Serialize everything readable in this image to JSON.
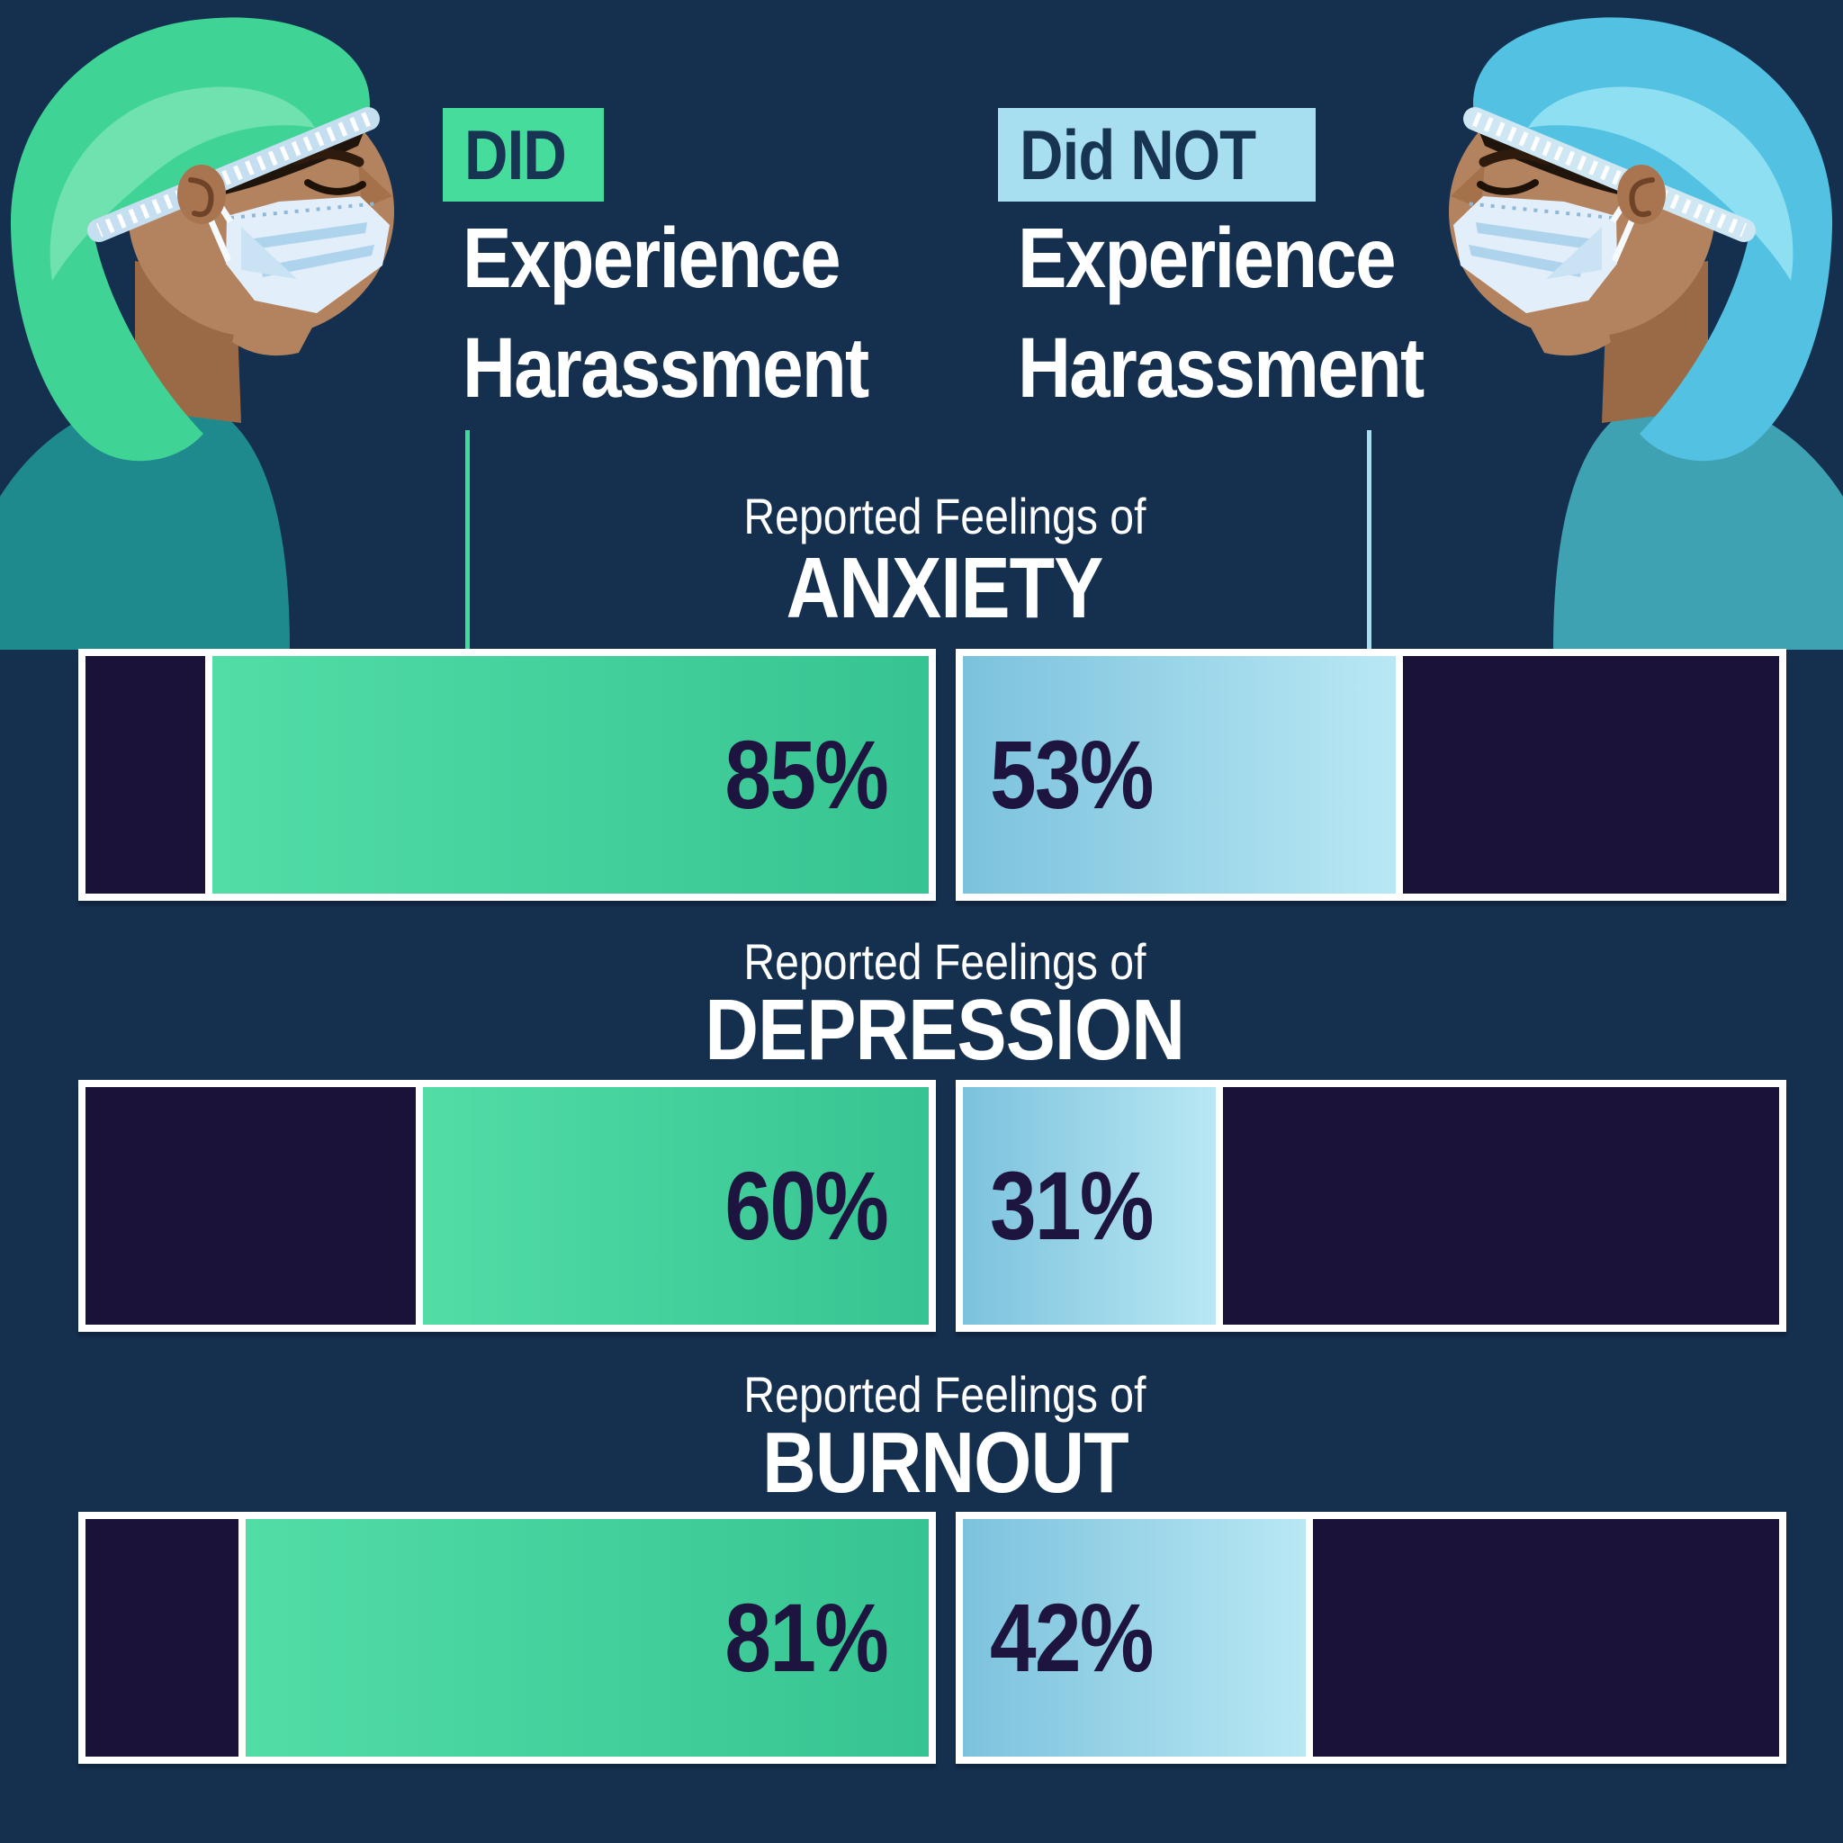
{
  "header": {
    "did": {
      "badge": "DID",
      "line1": "Experience",
      "line2": "Harassment"
    },
    "did_not": {
      "badge": "Did NOT",
      "line1": "Experience",
      "line2": "Harassment"
    }
  },
  "sections": [
    {
      "kicker": "Reported Feelings of",
      "title": "ANXIETY",
      "did_value": "85%",
      "did_not_value": "53%"
    },
    {
      "kicker": "Reported Feelings of",
      "title": "DEPRESSION",
      "did_value": "60%",
      "did_not_value": "31%"
    },
    {
      "kicker": "Reported Feelings of",
      "title": "BURNOUT",
      "did_value": "81%",
      "did_not_value": "42%"
    }
  ],
  "chart_data": {
    "type": "bar",
    "orientation": "horizontal",
    "categories": [
      "ANXIETY",
      "DEPRESSION",
      "BURNOUT"
    ],
    "category_kicker": "Reported Feelings of",
    "series": [
      {
        "name": "DID Experience Harassment",
        "values": [
          85,
          60,
          81
        ],
        "fill_start": "#52dda6",
        "fill_end": "#36c492",
        "fill_anchor": "right"
      },
      {
        "name": "Did NOT Experience Harassment",
        "values": [
          53,
          31,
          42
        ],
        "fill_start": "#7cc2dd",
        "fill_end": "#b9e8f4",
        "fill_anchor": "left"
      }
    ],
    "value_suffix": "%",
    "xlim": [
      0,
      100
    ],
    "track_color": "#1a1238",
    "value_label_color": "#1e1440",
    "bar_border_color": "#ffffff",
    "legend_position": "top"
  },
  "colors": {
    "background": "#15304f",
    "did_badge": "#45dc9c",
    "did_not_badge": "#a8dff0",
    "badge_text": "#173452",
    "heading_text": "#ffffff",
    "tick_did": "#3edc9b",
    "tick_did_not": "#a8dff0",
    "dark_segment": "#1a1238"
  }
}
